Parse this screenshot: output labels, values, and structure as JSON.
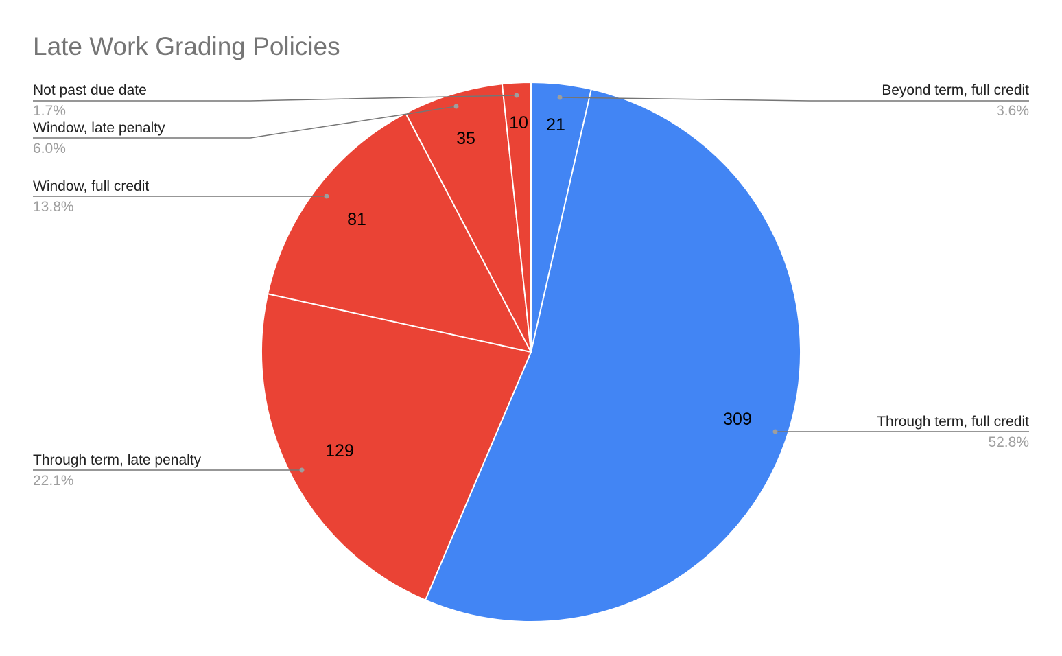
{
  "chart_data": {
    "type": "pie",
    "title": "Late Work Grading Policies",
    "start": "top, clockwise",
    "slices": [
      {
        "label": "Beyond term, full credit",
        "value": 21,
        "percent": "3.6%",
        "color": "#4285F4"
      },
      {
        "label": "Through term, full credit",
        "value": 309,
        "percent": "52.8%",
        "color": "#4285F4"
      },
      {
        "label": "Through term, late penalty",
        "value": 129,
        "percent": "22.1%",
        "color": "#EA4335"
      },
      {
        "label": "Window, full credit",
        "value": 81,
        "percent": "13.8%",
        "color": "#EA4335"
      },
      {
        "label": "Window, late penalty",
        "value": 35,
        "percent": "6.0%",
        "color": "#EA4335"
      },
      {
        "label": "Not past due date",
        "value": 10,
        "percent": "1.7%",
        "color": "#EA4335"
      }
    ],
    "legend": "callout labels with leader lines"
  }
}
